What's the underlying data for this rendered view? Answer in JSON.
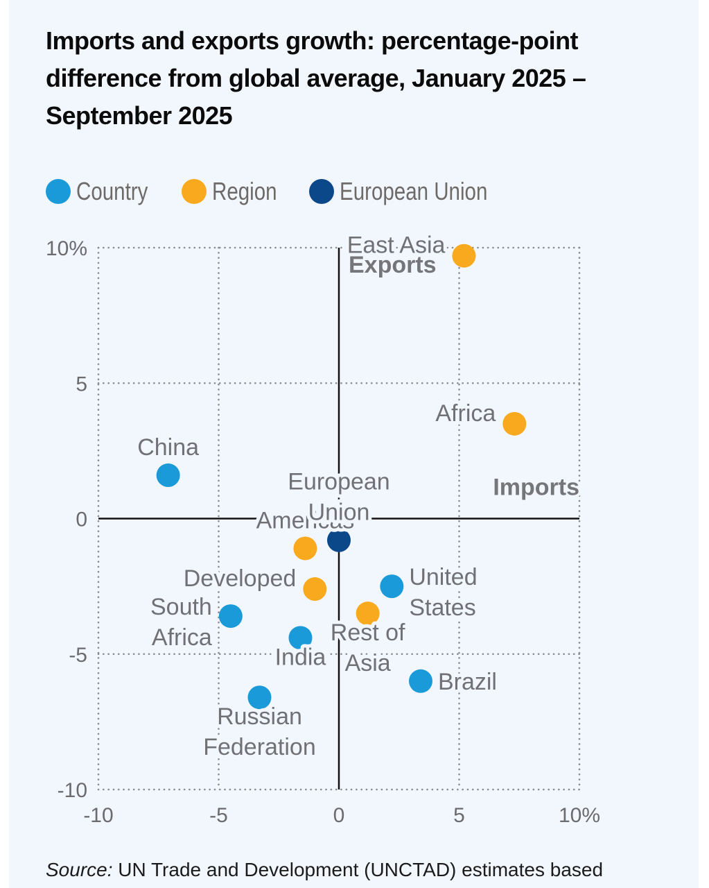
{
  "title": "Imports and exports growth: percentage-point difference from global average, January 2025 – September 2025",
  "legend": [
    {
      "label": "Country",
      "color": "#1b9ad9"
    },
    {
      "label": "Region",
      "color": "#f9a91d"
    },
    {
      "label": "European Union",
      "color": "#0a4889"
    }
  ],
  "source": {
    "prefix": "Source:",
    "text": " UN Trade and Development (UNCTAD) estimates based"
  },
  "chart_data": {
    "type": "scatter",
    "title": "Imports and exports growth: percentage-point difference from global average, January 2025 – September 2025",
    "xlabel": "Imports",
    "ylabel": "Exports",
    "xlim": [
      -10,
      10
    ],
    "ylim": [
      -10,
      10
    ],
    "x_ticks": [
      "-10",
      "-5",
      "0",
      "5",
      "10%"
    ],
    "y_ticks": [
      "10%",
      "5",
      "0",
      "-5",
      "-10"
    ],
    "x_tick_values": [
      -10,
      -5,
      0,
      5,
      10
    ],
    "y_tick_values": [
      10,
      5,
      0,
      -5,
      -10
    ],
    "grid": true,
    "legend_position": "top-left",
    "series": [
      {
        "name": "Country",
        "color": "#1b9ad9",
        "points": [
          {
            "label": [
              "China"
            ],
            "x": -7.1,
            "y": 1.6,
            "label_pos": "above"
          },
          {
            "label": [
              "United",
              "States"
            ],
            "x": 2.2,
            "y": -2.5,
            "label_pos": "right"
          },
          {
            "label": [
              "South",
              "Africa"
            ],
            "x": -4.5,
            "y": -3.6,
            "label_pos": "left"
          },
          {
            "label": [
              "India"
            ],
            "x": -1.6,
            "y": -4.4,
            "label_pos": "below"
          },
          {
            "label": [
              "Brazil"
            ],
            "x": 3.4,
            "y": -6.0,
            "label_pos": "right"
          },
          {
            "label": [
              "Russian",
              "Federation"
            ],
            "x": -3.3,
            "y": -6.6,
            "label_pos": "below"
          }
        ]
      },
      {
        "name": "Region",
        "color": "#f9a91d",
        "points": [
          {
            "label": [
              "East Asia"
            ],
            "x": 5.2,
            "y": 9.7,
            "label_pos": "left"
          },
          {
            "label": [
              "Africa"
            ],
            "x": 7.3,
            "y": 3.5,
            "label_pos": "left"
          },
          {
            "label": [
              "Americas"
            ],
            "x": -1.4,
            "y": -1.1,
            "label_pos": "above"
          },
          {
            "label": [
              "Developed"
            ],
            "x": -1.0,
            "y": -2.6,
            "label_pos": "left"
          },
          {
            "label": [
              "Rest of",
              "Asia"
            ],
            "x": 1.2,
            "y": -3.5,
            "label_pos": "below"
          }
        ]
      },
      {
        "name": "European Union",
        "color": "#0a4889",
        "points": [
          {
            "label": [
              "European",
              "Union"
            ],
            "x": 0.0,
            "y": -0.8,
            "label_pos": "above"
          }
        ]
      }
    ]
  }
}
